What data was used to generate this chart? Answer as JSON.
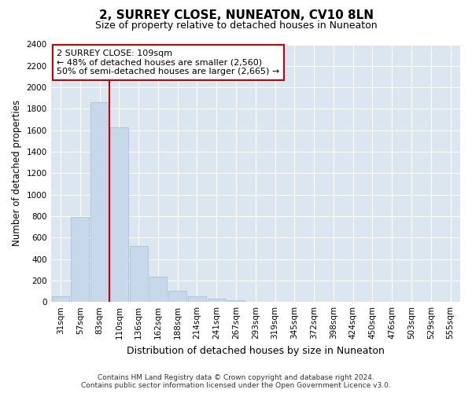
{
  "title": "2, SURREY CLOSE, NUNEATON, CV10 8LN",
  "subtitle": "Size of property relative to detached houses in Nuneaton",
  "xlabel": "Distribution of detached houses by size in Nuneaton",
  "ylabel": "Number of detached properties",
  "bar_color": "#c8d8eb",
  "bar_edge_color": "#a0bcd4",
  "bg_color": "#dce6f0",
  "fig_bg_color": "#ffffff",
  "categories": [
    "31sqm",
    "57sqm",
    "83sqm",
    "110sqm",
    "136sqm",
    "162sqm",
    "188sqm",
    "214sqm",
    "241sqm",
    "267sqm",
    "293sqm",
    "319sqm",
    "345sqm",
    "372sqm",
    "398sqm",
    "424sqm",
    "450sqm",
    "476sqm",
    "503sqm",
    "529sqm",
    "555sqm"
  ],
  "values": [
    55,
    795,
    1860,
    1630,
    520,
    235,
    105,
    55,
    30,
    18,
    0,
    0,
    0,
    0,
    0,
    0,
    0,
    0,
    0,
    0,
    0
  ],
  "ylim": [
    0,
    2400
  ],
  "yticks": [
    0,
    200,
    400,
    600,
    800,
    1000,
    1200,
    1400,
    1600,
    1800,
    2000,
    2200,
    2400
  ],
  "property_line_color": "#cc0000",
  "property_line_x": 2.5,
  "annotation_title": "2 SURREY CLOSE: 109sqm",
  "annotation_line1": "← 48% of detached houses are smaller (2,560)",
  "annotation_line2": "50% of semi-detached houses are larger (2,665) →",
  "footer_line1": "Contains HM Land Registry data © Crown copyright and database right 2024.",
  "footer_line2": "Contains public sector information licensed under the Open Government Licence v3.0.",
  "grid_color": "#ffffff",
  "title_fontsize": 11,
  "subtitle_fontsize": 9,
  "ylabel_fontsize": 8.5,
  "xlabel_fontsize": 9,
  "tick_fontsize": 7.5,
  "annotation_fontsize": 8,
  "footer_fontsize": 6.5
}
